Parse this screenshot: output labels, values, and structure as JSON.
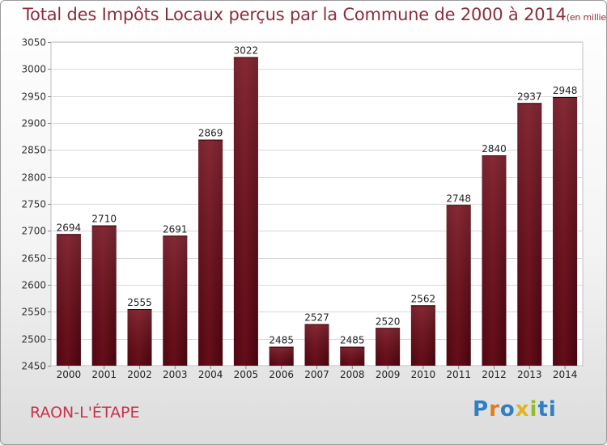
{
  "chart_data": {
    "type": "bar",
    "title": "Total des Impôts Locaux perçus par la Commune de 2000 à 2014",
    "subtitle": "(en milliers d'€)",
    "xlabel": "",
    "ylabel": "",
    "categories": [
      "2000",
      "2001",
      "2002",
      "2003",
      "2004",
      "2005",
      "2006",
      "2007",
      "2008",
      "2009",
      "2010",
      "2011",
      "2012",
      "2013",
      "2014"
    ],
    "values": [
      2694,
      2710,
      2555,
      2691,
      2869,
      3022,
      2485,
      2527,
      2485,
      2520,
      2562,
      2748,
      2840,
      2937,
      2948
    ],
    "ylim": [
      2450,
      3050
    ],
    "yticks": [
      2450,
      2500,
      2550,
      2600,
      2650,
      2700,
      2750,
      2800,
      2850,
      2900,
      2950,
      3000,
      3050
    ],
    "grid": true,
    "bar_color": "#7a1422"
  },
  "commune": "RAON-L'ÉTAPE",
  "logo": [
    "P",
    "r",
    "o",
    "x",
    "i",
    "ti"
  ]
}
